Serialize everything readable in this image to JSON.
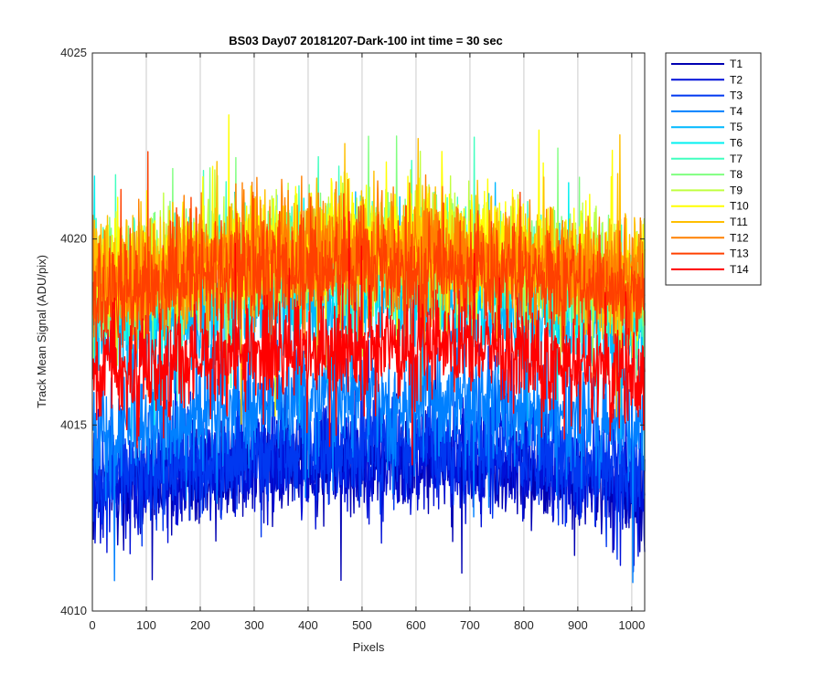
{
  "chart_data": {
    "type": "line",
    "title": "BS03 Day07 20181207-Dark-100 int time = 30 sec",
    "xlabel": "Pixels",
    "ylabel": "Track Mean Signal (ADU/pix)",
    "xlim": [
      0,
      1024
    ],
    "ylim": [
      4010,
      4025
    ],
    "x_ticks": [
      0,
      100,
      200,
      300,
      400,
      500,
      600,
      700,
      800,
      900,
      1000
    ],
    "y_ticks": [
      4010,
      4015,
      4020,
      4025
    ],
    "x_grid": true,
    "y_grid": false,
    "legend_position": "outside-top-right",
    "x": {
      "start": 1,
      "end": 1024,
      "step": 1
    },
    "series": [
      {
        "name": "T1",
        "color": "#0000B2",
        "mean": 4013.9,
        "noise": 1.0
      },
      {
        "name": "T2",
        "color": "#0010D8",
        "mean": 4014.0,
        "noise": 1.0
      },
      {
        "name": "T3",
        "color": "#0038F0",
        "mean": 4014.3,
        "noise": 1.0
      },
      {
        "name": "T4",
        "color": "#0080FF",
        "mean": 4015.5,
        "noise": 1.1
      },
      {
        "name": "T5",
        "color": "#00B8FF",
        "mean": 4018.2,
        "noise": 1.1
      },
      {
        "name": "T6",
        "color": "#00F0F0",
        "mean": 4019.0,
        "noise": 1.1
      },
      {
        "name": "T7",
        "color": "#40FFBF",
        "mean": 4019.3,
        "noise": 1.1
      },
      {
        "name": "T8",
        "color": "#80FF80",
        "mean": 4019.5,
        "noise": 1.1
      },
      {
        "name": "T9",
        "color": "#C0FF40",
        "mean": 4019.6,
        "noise": 1.1
      },
      {
        "name": "T10",
        "color": "#FFFF00",
        "mean": 4019.7,
        "noise": 1.1
      },
      {
        "name": "T11",
        "color": "#FFBF00",
        "mean": 4019.6,
        "noise": 1.1
      },
      {
        "name": "T12",
        "color": "#FF8000",
        "mean": 4019.5,
        "noise": 1.1
      },
      {
        "name": "T13",
        "color": "#FF4000",
        "mean": 4019.1,
        "noise": 1.0
      },
      {
        "name": "T14",
        "color": "#FF0000",
        "mean": 4017.0,
        "noise": 1.0
      }
    ]
  }
}
